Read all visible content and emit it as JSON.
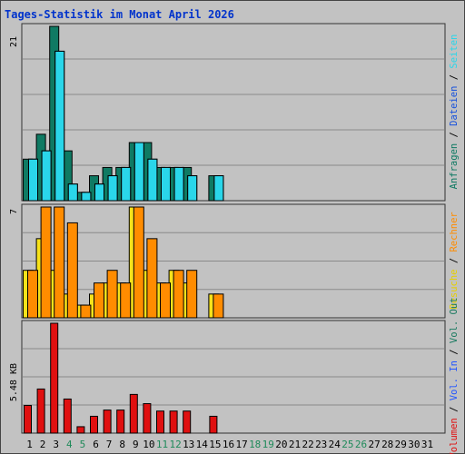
{
  "title": "Tages-Statistik im Monat April 2026",
  "colors": {
    "hits": "#0f7a63",
    "files": "#19c4e8",
    "pages": "#2ad6ea",
    "visits": "#f7e21a",
    "sites": "#ff8c00",
    "kbytes": "#e01010",
    "background": "#c2c2c2",
    "gridline": "#8a8a8a",
    "title": "#0033cc",
    "weekend": "#1f8a5a",
    "volumen_in": "#2255ff",
    "volumen_out": "#1a7a60"
  },
  "chart_data": [
    {
      "type": "bar",
      "panel": "top",
      "ytick": "21",
      "ylim": [
        0,
        21
      ],
      "x": [
        1,
        2,
        3,
        4,
        5,
        6,
        7,
        8,
        9,
        10,
        11,
        12,
        13,
        14,
        15,
        16,
        17,
        18,
        19,
        20,
        21,
        22,
        23,
        24,
        25,
        26,
        27,
        28,
        29,
        30,
        31
      ],
      "series": [
        {
          "name": "Anfragen",
          "color": "#0f7a63",
          "values": [
            5,
            8,
            21,
            6,
            1,
            3,
            4,
            4,
            7,
            7,
            4,
            4,
            4,
            0,
            3,
            0,
            0,
            0,
            0,
            0,
            0,
            0,
            0,
            0,
            0,
            0,
            0,
            0,
            0,
            0,
            0
          ]
        },
        {
          "name": "Dateien",
          "color": "#19c4e8",
          "values": [
            5,
            6,
            18,
            2,
            1,
            2,
            3,
            4,
            7,
            5,
            4,
            4,
            3,
            0,
            3,
            0,
            0,
            0,
            0,
            0,
            0,
            0,
            0,
            0,
            0,
            0,
            0,
            0,
            0,
            0,
            0
          ]
        },
        {
          "name": "Seiten",
          "color": "#2ad6ea",
          "values": [
            5,
            6,
            18,
            2,
            1,
            2,
            3,
            4,
            7,
            5,
            4,
            4,
            3,
            0,
            3,
            0,
            0,
            0,
            0,
            0,
            0,
            0,
            0,
            0,
            0,
            0,
            0,
            0,
            0,
            0,
            0
          ]
        }
      ]
    },
    {
      "type": "bar",
      "panel": "middle",
      "ytick": "7",
      "ylim": [
        0,
        7
      ],
      "x": [
        1,
        2,
        3,
        4,
        5,
        6,
        7,
        8,
        9,
        10,
        11,
        12,
        13,
        14,
        15,
        16,
        17,
        18,
        19,
        20,
        21,
        22,
        23,
        24,
        25,
        26,
        27,
        28,
        29,
        30,
        31
      ],
      "series": [
        {
          "name": "Besuche",
          "color": "#f7e21a",
          "values": [
            3,
            5,
            3,
            1.5,
            0.8,
            1.5,
            2.2,
            2.2,
            7,
            3,
            2.2,
            3,
            2.2,
            0,
            1.5,
            0,
            0,
            0,
            0,
            0,
            0,
            0,
            0,
            0,
            0,
            0,
            0,
            0,
            0,
            0,
            0
          ]
        },
        {
          "name": "Rechner",
          "color": "#ff8c00",
          "values": [
            3,
            7,
            7,
            6,
            0.8,
            2.2,
            3,
            2.2,
            7,
            5,
            2.2,
            3,
            3,
            0,
            1.5,
            0,
            0,
            0,
            0,
            0,
            0,
            0,
            0,
            0,
            0,
            0,
            0,
            0,
            0,
            0,
            0
          ]
        }
      ]
    },
    {
      "type": "bar",
      "panel": "bottom",
      "ytick": "5.48 KB",
      "ylim": [
        0,
        5.48
      ],
      "x": [
        1,
        2,
        3,
        4,
        5,
        6,
        7,
        8,
        9,
        10,
        11,
        12,
        13,
        14,
        15,
        16,
        17,
        18,
        19,
        20,
        21,
        22,
        23,
        24,
        25,
        26,
        27,
        28,
        29,
        30,
        31
      ],
      "series": [
        {
          "name": "Volumen",
          "color": "#e01010",
          "values": [
            1.38,
            2.2,
            5.48,
            1.7,
            0.32,
            0.84,
            1.15,
            1.15,
            1.93,
            1.47,
            1.1,
            1.1,
            1.1,
            0,
            0.84,
            0,
            0,
            0,
            0,
            0,
            0,
            0,
            0,
            0,
            0,
            0,
            0,
            0,
            0,
            0,
            0
          ]
        }
      ]
    }
  ],
  "x_labels": [
    "1",
    "2",
    "3",
    "4",
    "5",
    "6",
    "7",
    "8",
    "9",
    "10",
    "11",
    "12",
    "13",
    "14",
    "15",
    "16",
    "17",
    "18",
    "19",
    "20",
    "21",
    "22",
    "23",
    "24",
    "25",
    "26",
    "27",
    "28",
    "29",
    "30",
    "31"
  ],
  "weekend_days": [
    4,
    5,
    11,
    12,
    18,
    19,
    25,
    26
  ],
  "right_legend_top": [
    {
      "text": "Anfragen",
      "color": "#0f7a63"
    },
    {
      "text": " / ",
      "color": "#000000"
    },
    {
      "text": "Dateien",
      "color": "#1550dd"
    },
    {
      "text": " / ",
      "color": "#000000"
    },
    {
      "text": "Seiten",
      "color": "#2ad6ea"
    }
  ],
  "right_legend_middle": [
    {
      "text": "Besuche",
      "color": "#e6cf00"
    },
    {
      "text": " / ",
      "color": "#000000"
    },
    {
      "text": "Rechner",
      "color": "#ff8c00"
    }
  ],
  "right_legend_bottom": [
    {
      "text": "Volumen",
      "color": "#e01010"
    },
    {
      "text": " / ",
      "color": "#000000"
    },
    {
      "text": "Vol. In",
      "color": "#2255ff"
    },
    {
      "text": " / ",
      "color": "#000000"
    },
    {
      "text": "Vol. Out",
      "color": "#1a7a60"
    }
  ]
}
